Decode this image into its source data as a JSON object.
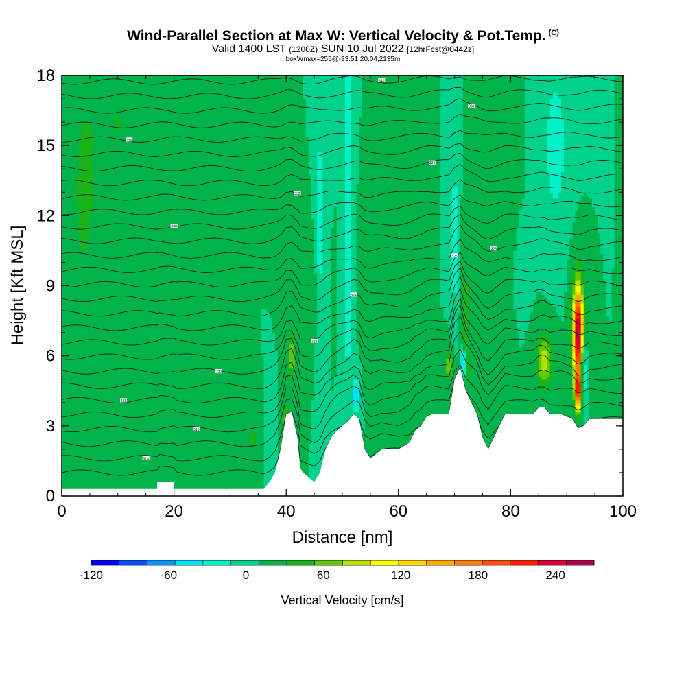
{
  "header": {
    "title": "Wind-Parallel Section at Max W: Vertical Velocity & Pot.Temp.",
    "copyright": "(C)",
    "valid_prefix": "Valid 1400 LST",
    "valid_z": "(1200Z)",
    "valid_date": "SUN 10 Jul 2022",
    "forecast": "[12hrFcst@0442z]",
    "box": "boxWmax=255@-33.51,20.04,2135m"
  },
  "colorbar": {
    "label": "Vertical Velocity [cm/s]",
    "tick_labels": [
      "-120",
      "-60",
      "0",
      "60",
      "120",
      "180",
      "240"
    ],
    "colors": [
      "#0000ff",
      "#0050ff",
      "#0096ff",
      "#00e1ff",
      "#00f0c8",
      "#00d28c",
      "#00b44b",
      "#19b419",
      "#64c800",
      "#b4e100",
      "#ffff00",
      "#ffd200",
      "#ffaa00",
      "#ff7d00",
      "#ff5000",
      "#ff1e00",
      "#dc0032",
      "#b40046"
    ]
  },
  "chart_data": {
    "type": "heatmap",
    "xlabel": "Distance [nm]",
    "ylabel": "Height [Kft MSL]",
    "xlim": [
      0,
      100
    ],
    "ylim": [
      0,
      18
    ],
    "x_ticks": [
      0,
      20,
      40,
      60,
      80,
      100
    ],
    "y_ticks": [
      0,
      3,
      6,
      9,
      12,
      15,
      18
    ],
    "variable": "Vertical Velocity",
    "units": "cm/s",
    "color_range": [
      -120,
      270
    ],
    "background_value": 10,
    "terrain_kft": [
      [
        0,
        0.3
      ],
      [
        17,
        0.3
      ],
      [
        17,
        0.6
      ],
      [
        20,
        0.6
      ],
      [
        20,
        0.3
      ],
      [
        36,
        0.3
      ],
      [
        37,
        0.6
      ],
      [
        38,
        1.0
      ],
      [
        39,
        2.0
      ],
      [
        40,
        3.5
      ],
      [
        41,
        3.6
      ],
      [
        42,
        2.5
      ],
      [
        42.5,
        1.2
      ],
      [
        43,
        1.0
      ],
      [
        44,
        0.8
      ],
      [
        45,
        0.6
      ],
      [
        46,
        1.0
      ],
      [
        47,
        2.0
      ],
      [
        48,
        2.5
      ],
      [
        49,
        2.8
      ],
      [
        50,
        3.0
      ],
      [
        51,
        3.2
      ],
      [
        52,
        3.5
      ],
      [
        53,
        3.3
      ],
      [
        54,
        2.0
      ],
      [
        55,
        1.6
      ],
      [
        57,
        2.0
      ],
      [
        60,
        2.0
      ],
      [
        62,
        2.3
      ],
      [
        63,
        2.8
      ],
      [
        64,
        3.0
      ],
      [
        65,
        3.4
      ],
      [
        66,
        3.5
      ],
      [
        69,
        3.5
      ],
      [
        70,
        5.0
      ],
      [
        71,
        5.5
      ],
      [
        72,
        4.5
      ],
      [
        73,
        4.0
      ],
      [
        74,
        3.5
      ],
      [
        75,
        2.5
      ],
      [
        76,
        2.0
      ],
      [
        77,
        2.5
      ],
      [
        78,
        3.0
      ],
      [
        79,
        3.5
      ],
      [
        84,
        3.5
      ],
      [
        85,
        3.8
      ],
      [
        86,
        3.8
      ],
      [
        87,
        3.5
      ],
      [
        89,
        3.5
      ],
      [
        91,
        3.3
      ],
      [
        92,
        2.9
      ],
      [
        93,
        3.0
      ],
      [
        94,
        3.3
      ],
      [
        100,
        3.3
      ]
    ],
    "features": [
      {
        "x": 92,
        "z": 7.0,
        "sx": 0.9,
        "sz": 2.0,
        "w": 260
      },
      {
        "x": 92,
        "z": 4.5,
        "sx": 0.6,
        "sz": 0.8,
        "w": 180
      },
      {
        "x": 86,
        "z": 5.8,
        "sx": 1.4,
        "sz": 1.1,
        "w": 80
      },
      {
        "x": 41,
        "z": 6.0,
        "sx": 0.6,
        "sz": 1.0,
        "w": 70
      },
      {
        "x": 40,
        "z": 3.2,
        "sx": 0.5,
        "sz": 0.8,
        "w": 60
      },
      {
        "x": 69,
        "z": 5.6,
        "sx": 0.7,
        "sz": 0.7,
        "w": 60
      },
      {
        "x": 72,
        "z": 7.0,
        "sx": 0.8,
        "sz": 3.0,
        "w": 40
      },
      {
        "x": 71.5,
        "z": 5.7,
        "sx": 0.35,
        "sz": 0.7,
        "w": -120
      },
      {
        "x": 52.5,
        "z": 4.3,
        "sx": 0.35,
        "sz": 0.7,
        "w": -90
      },
      {
        "x": 51,
        "z": 12,
        "sx": 0.6,
        "sz": 8,
        "w": -45
      },
      {
        "x": 46,
        "z": 12,
        "sx": 0.7,
        "sz": 4,
        "w": -40
      },
      {
        "x": 70,
        "z": 11,
        "sx": 0.6,
        "sz": 3,
        "w": -45
      },
      {
        "x": 88,
        "z": 15,
        "sx": 1.8,
        "sz": 3,
        "w": -40
      },
      {
        "x": 93,
        "z": 5.5,
        "sx": 0.5,
        "sz": 1.5,
        "w": -60
      },
      {
        "x": 82,
        "z": 9.5,
        "sx": 1.0,
        "sz": 1.2,
        "w": -20
      },
      {
        "x": 4,
        "z": 13,
        "sx": 2.5,
        "sz": 5,
        "w": 28
      },
      {
        "x": 10,
        "z": 16,
        "sx": 4,
        "sz": 2.5,
        "w": 22
      },
      {
        "x": 10,
        "z": 7,
        "sx": 1.5,
        "sz": 3,
        "w": 18
      },
      {
        "x": 28,
        "z": 12,
        "sx": 1.2,
        "sz": 5,
        "w": 20
      },
      {
        "x": 22,
        "z": 15,
        "sx": 1,
        "sz": 3,
        "w": 18
      },
      {
        "x": 62,
        "z": 13,
        "sx": 1.2,
        "sz": 5,
        "w": 22
      },
      {
        "x": 57,
        "z": 10,
        "sx": 2,
        "sz": 2,
        "w": 15
      },
      {
        "x": 44,
        "z": 9,
        "sx": 1.5,
        "sz": 2,
        "w": 18
      },
      {
        "x": 79,
        "z": 12,
        "sx": 1.2,
        "sz": 4,
        "w": 22
      },
      {
        "x": 76,
        "z": 7,
        "sx": 1,
        "sz": 2,
        "w": 20
      },
      {
        "x": 34,
        "z": 2.5,
        "sx": 1.0,
        "sz": 1.0,
        "w": 25
      },
      {
        "x": 37,
        "z": 3.0,
        "sx": 0.5,
        "sz": 1.0,
        "w": -25
      }
    ],
    "theta_contours": {
      "base_kft": 1.0,
      "spacing_kft": 0.62,
      "count": 28
    },
    "contour_labels": [
      "314",
      "316",
      "318",
      "320",
      "322",
      "324",
      "326",
      "328",
      "330",
      "332",
      "334",
      "336",
      "338",
      "340"
    ]
  }
}
